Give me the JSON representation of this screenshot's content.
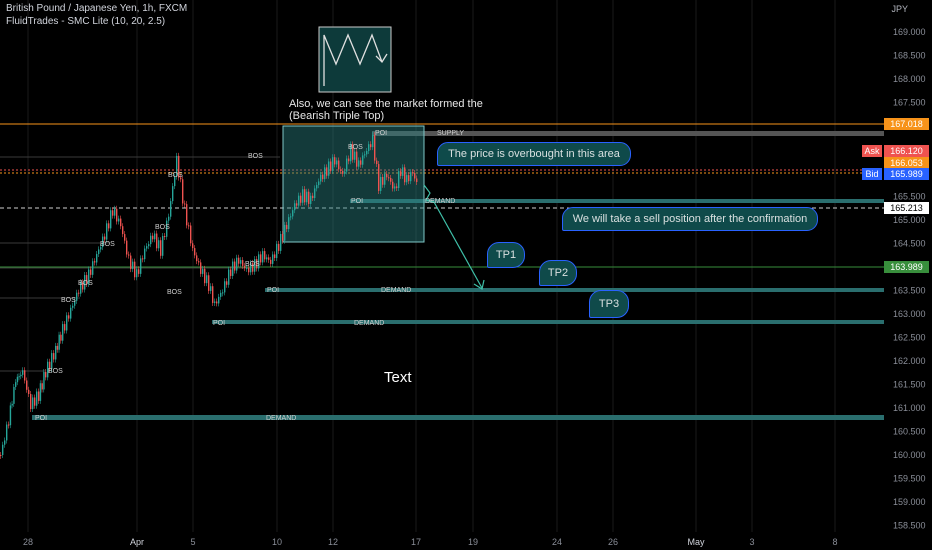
{
  "header": {
    "symbol_line": "British Pound / Japanese Yen, 1h, FXCM",
    "indicator_line": "FluidTrades - SMC Lite  (10, 20, 2.5)"
  },
  "axis": {
    "currency": "JPY",
    "y_ticks": [
      "169.000",
      "168.500",
      "168.000",
      "167.500",
      "167.000",
      "166.500",
      "166.000",
      "165.500",
      "165.000",
      "164.500",
      "164.000",
      "163.500",
      "163.000",
      "162.500",
      "162.000",
      "161.500",
      "161.000",
      "160.500",
      "160.000",
      "159.500",
      "159.000",
      "158.500"
    ],
    "x_ticks": [
      "28",
      "Apr",
      "5",
      "10",
      "12",
      "17",
      "19",
      "24",
      "26",
      "May",
      "3",
      "8"
    ]
  },
  "price_tags": {
    "supply_level": "167.018",
    "ask_label": "Ask",
    "ask": "166.120",
    "mid": "166.053",
    "bid_label": "Bid",
    "bid": "165.989",
    "current": "165.213",
    "green_level": "163.989"
  },
  "zone_labels": {
    "supply": "SUPPLY",
    "poi": "POI",
    "demand": "DEMAND",
    "bos": "BOS"
  },
  "annotations": {
    "triple_top_line1": "Also, we can see the market formed the",
    "triple_top_line2": "(Bearish Triple Top)",
    "overbought": "The price is overbought in this area",
    "sell": "We will take a sell position after the confirmation",
    "tp1": "TP1",
    "tp2": "TP2",
    "tp3": "TP3",
    "text_label": "Text"
  },
  "colors": {
    "background": "#000000",
    "candle_up": "#26a69a",
    "candle_down": "#ef5350",
    "supply_line": "#f7931a",
    "zone_teal": "#2a6e6e",
    "bid_blue": "#2962ff",
    "green_level": "#388e3c"
  }
}
